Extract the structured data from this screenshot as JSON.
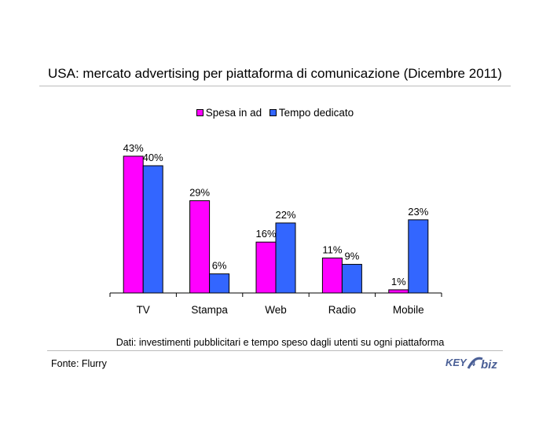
{
  "title": "USA: mercato advertising per piattaforma di comunicazione (Dicembre 2011)",
  "caption": "Dati: investimenti pubblicitari e tempo speso dagli utenti su ogni piattaforma",
  "source": "Fonte: Flurry",
  "logo": {
    "text_a": "KEY",
    "text_b": "biz",
    "digit": "4"
  },
  "colors": {
    "spesa": "#ff00ff",
    "tempo": "#3366ff",
    "logo": "#4a5f96"
  },
  "chart_data": {
    "type": "bar",
    "title": "",
    "xlabel": "",
    "ylabel": "",
    "ylim": [
      0,
      45
    ],
    "grid": false,
    "legend_position": "top",
    "categories": [
      "TV",
      "Stampa",
      "Web",
      "Radio",
      "Mobile"
    ],
    "series": [
      {
        "name": "Spesa in ad",
        "color": "#ff00ff",
        "values": [
          43,
          29,
          16,
          11,
          1
        ],
        "labels": [
          "43%",
          "29%",
          "16%",
          "11%",
          "1%"
        ]
      },
      {
        "name": "Tempo dedicato",
        "color": "#3366ff",
        "values": [
          40,
          6,
          22,
          9,
          23
        ],
        "labels": [
          "40%",
          "6%",
          "22%",
          "9%",
          "23%"
        ]
      }
    ]
  }
}
